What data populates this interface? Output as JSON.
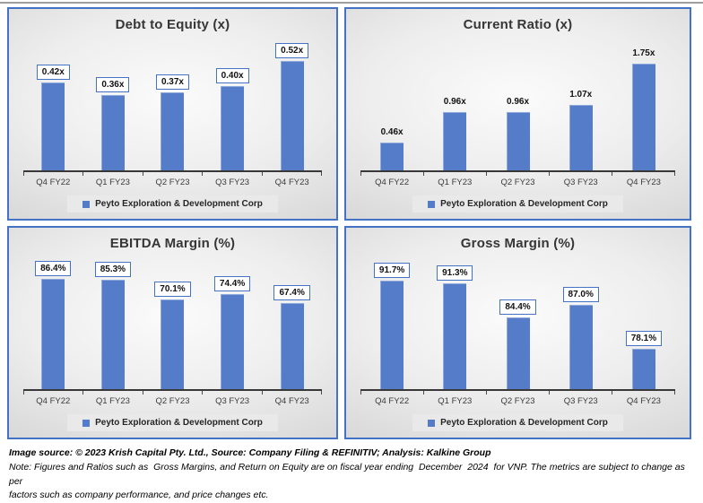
{
  "page": {
    "colors": {
      "accent": "#4472C4",
      "bar": "#557CC9",
      "legend_bg": "#e9e9e9"
    },
    "footer": {
      "source_line": "Image source: © 2023 Krish Capital Pty. Ltd., Source: Company Filing & REFINITIV; Analysis: Kalkine Group",
      "note_line1": "Note: Figures and Ratios such as  Gross Margins, and Return on Equity are on fiscal year ending  December  2024  for VNP. The metrics are subject to change as per",
      "note_line2": "factors such as company performance, and price changes etc."
    }
  },
  "chart_data": [
    {
      "type": "bar",
      "title": "Debt to Equity (x)",
      "categories": [
        "Q4 FY22",
        "Q1 FY23",
        "Q2 FY23",
        "Q3 FY23",
        "Q4 FY23"
      ],
      "values": [
        0.42,
        0.36,
        0.37,
        0.4,
        0.52
      ],
      "labels": [
        "0.42x",
        "0.36x",
        "0.37x",
        "0.40x",
        "0.52x"
      ],
      "ylim": [
        0,
        0.64
      ],
      "boxed_labels": true,
      "grid": false,
      "xlabel": "",
      "ylabel": "",
      "legend": "Peyto Exploration & Development Corp",
      "legend_position": "bottom"
    },
    {
      "type": "bar",
      "title": "Current Ratio (x)",
      "categories": [
        "Q4 FY22",
        "Q1 FY23",
        "Q2 FY23",
        "Q3 FY23",
        "Q4 FY23"
      ],
      "values": [
        0.46,
        0.96,
        0.96,
        1.07,
        1.75
      ],
      "labels": [
        "0.46x",
        "0.96x",
        "0.96x",
        "1.07x",
        "1.75x"
      ],
      "ylim": [
        0,
        2.2
      ],
      "boxed_labels": false,
      "grid": false,
      "xlabel": "",
      "ylabel": "",
      "legend": "Peyto Exploration & Development Corp",
      "legend_position": "bottom"
    },
    {
      "type": "bar",
      "title": "EBITDA Margin (%)",
      "categories": [
        "Q4 FY22",
        "Q1 FY23",
        "Q2 FY23",
        "Q3 FY23",
        "Q4 FY23"
      ],
      "values": [
        86.4,
        85.3,
        70.1,
        74.4,
        67.4
      ],
      "labels": [
        "86.4%",
        "85.3%",
        "70.1%",
        "74.4%",
        "67.4%"
      ],
      "ylim": [
        0,
        105
      ],
      "boxed_labels": true,
      "grid": false,
      "xlabel": "",
      "ylabel": "",
      "legend": "Peyto Exploration & Development Corp",
      "legend_position": "bottom"
    },
    {
      "type": "bar",
      "title": "Gross Margin (%)",
      "categories": [
        "Q4 FY22",
        "Q1 FY23",
        "Q2 FY23",
        "Q3 FY23",
        "Q4 FY23"
      ],
      "values": [
        91.7,
        91.3,
        84.4,
        87.0,
        78.1
      ],
      "labels": [
        "91.7%",
        "91.3%",
        "84.4%",
        "87.0%",
        "78.1%"
      ],
      "ylim": [
        70,
        97
      ],
      "boxed_labels": true,
      "grid": false,
      "xlabel": "",
      "ylabel": "",
      "legend": "Peyto Exploration & Development Corp",
      "legend_position": "bottom"
    }
  ]
}
